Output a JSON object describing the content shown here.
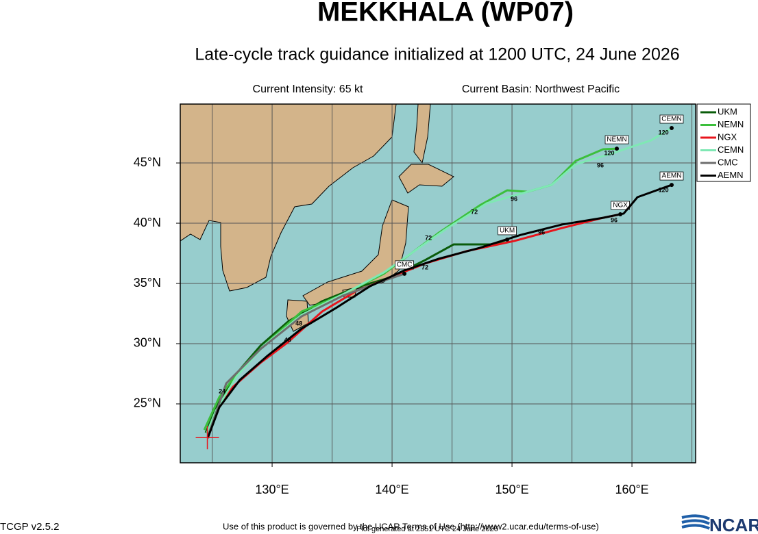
{
  "chart_data": {
    "type": "track-map",
    "title": "MEKKHALA (WP07)",
    "subtitle": "Late-cycle track guidance initialized at 1200 UTC, 24 June 2026",
    "info_left": "Current Intensity: 65 kt",
    "info_right": "Current Basin: Northwest Pacific",
    "footer_terms": "Use of this product is governed by the UCAR Terms of Use (http://www2.ucar.edu/terms-of-use)",
    "footer_generated": "Plot generated at 2351 UTC   24 June 2026",
    "version": "TCGP v2.5.2",
    "logo": "NCAR",
    "xlim": [
      122.34,
      165.31
    ],
    "ylim": [
      20.11,
      49.89
    ],
    "xticks": [
      {
        "value": 130,
        "label": "130°E"
      },
      {
        "value": 140,
        "label": "140°E"
      },
      {
        "value": 150,
        "label": "150°E"
      },
      {
        "value": 160,
        "label": "160°E"
      }
    ],
    "yticks": [
      {
        "value": 25,
        "label": "25°N"
      },
      {
        "value": 30,
        "label": "30°N"
      },
      {
        "value": 35,
        "label": "35°N"
      },
      {
        "value": 40,
        "label": "40°N"
      },
      {
        "value": 45,
        "label": "45°N"
      }
    ],
    "xgrid": [
      125,
      130,
      135,
      140,
      145,
      150,
      155,
      160,
      165
    ],
    "ygrid": [
      25,
      30,
      35,
      40,
      45
    ],
    "current_position": {
      "lon": 124.6,
      "lat": 22.2
    },
    "series": [
      {
        "name": "UKM",
        "color": "#0a5c0a",
        "lon": [
          124.46,
          125.6,
          127.31,
          129.03,
          131.31,
          134.17,
          137.03,
          139.89,
          142.74,
          145.14,
          148.46,
          149.6
        ],
        "lat": [
          22.61,
          25.28,
          27.84,
          29.83,
          31.82,
          33.52,
          34.66,
          35.51,
          36.93,
          38.24,
          38.24,
          38.64
        ]
      },
      {
        "name": "NEMN",
        "color": "#3cbf3c",
        "lon": [
          124.34,
          125.6,
          127.31,
          129.6,
          132.46,
          135.89,
          139.31,
          143.89,
          147.31,
          149.6,
          151.31,
          153.31,
          155.31,
          157.6,
          158.74
        ],
        "lat": [
          22.84,
          25.57,
          27.84,
          30.11,
          32.67,
          34.09,
          35.8,
          39.2,
          41.48,
          42.73,
          42.61,
          43.18,
          45.17,
          46.14,
          46.19
        ]
      },
      {
        "name": "NGX",
        "color": "#e8141c",
        "lon": [
          124.63,
          125.31,
          126.74,
          129.03,
          131.31,
          134.17,
          137.03,
          139.89,
          142.74,
          146.17,
          150.17,
          154.17,
          157.6,
          159.03
        ],
        "lat": [
          22.16,
          24.43,
          26.42,
          28.41,
          30.11,
          32.67,
          34.38,
          35.51,
          36.65,
          37.67,
          38.52,
          39.6,
          40.45,
          40.74
        ]
      },
      {
        "name": "CEMN",
        "color": "#7fe8b4",
        "lon": [
          124.57,
          125.31,
          127.03,
          129.31,
          132.46,
          135.89,
          139.31,
          141.6,
          144.46,
          147.89,
          151.89,
          153.31,
          155.31,
          158.17,
          161.6,
          163.31
        ],
        "lat": [
          22.61,
          24.43,
          27.27,
          29.83,
          32.39,
          34.09,
          35.91,
          37.5,
          39.49,
          41.65,
          42.78,
          43.18,
          44.89,
          45.74,
          46.88,
          47.9
        ]
      },
      {
        "name": "CMC",
        "color": "#6e6e6e",
        "lon": [
          124.63,
          126.17,
          129.03,
          132.46,
          135.89,
          139.31,
          141.03
        ],
        "lat": [
          22.27,
          26.7,
          29.55,
          32.27,
          33.98,
          35.23,
          35.8
        ]
      },
      {
        "name": "AEMN",
        "color": "#000000",
        "lon": [
          124.63,
          125.6,
          127.31,
          129.6,
          132.46,
          135.31,
          138.17,
          141.03,
          143.89,
          147.31,
          150.74,
          154.17,
          157.6,
          159.31,
          159.89,
          160.46,
          163.31
        ],
        "lat": [
          22.16,
          24.72,
          26.99,
          28.98,
          31.25,
          32.95,
          34.77,
          36.08,
          37.05,
          37.95,
          39.03,
          39.89,
          40.45,
          40.8,
          41.48,
          42.16,
          43.18
        ]
      }
    ],
    "hour_labels": [
      {
        "text": "72",
        "lon": 143.03,
        "lat": 38.75
      },
      {
        "text": "72",
        "lon": 146.86,
        "lat": 40.9
      },
      {
        "text": "96",
        "lon": 150.17,
        "lat": 41.99
      },
      {
        "text": "96",
        "lon": 157.37,
        "lat": 44.77
      },
      {
        "text": "120",
        "lon": 158.11,
        "lat": 45.8
      },
      {
        "text": "120",
        "lon": 162.63,
        "lat": 47.5
      },
      {
        "text": "96",
        "lon": 158.51,
        "lat": 40.23
      },
      {
        "text": "120",
        "lon": 162.63,
        "lat": 42.73
      },
      {
        "text": "96",
        "lon": 152.46,
        "lat": 39.2
      },
      {
        "text": "72",
        "lon": 142.74,
        "lat": 36.3
      },
      {
        "text": "48",
        "lon": 132.23,
        "lat": 31.65
      },
      {
        "text": "48",
        "lon": 131.3,
        "lat": 30.28
      },
      {
        "text": "24",
        "lon": 125.83,
        "lat": 26.02
      }
    ]
  }
}
